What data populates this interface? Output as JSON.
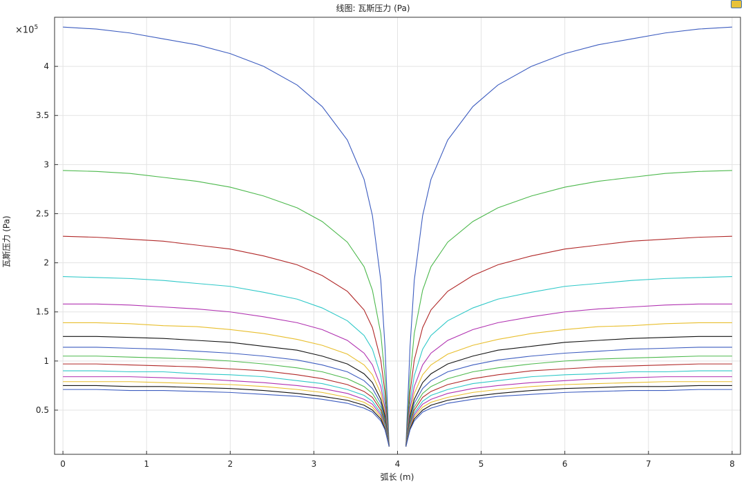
{
  "window": {
    "title": "线图: 瓦斯压力 (Pa)"
  },
  "chart_data": {
    "type": "line",
    "title": "线图: 瓦斯压力 (Pa)",
    "xlabel": "弧长 (m)",
    "ylabel": "瓦斯压力 (Pa)",
    "y_exponent_label": "×10",
    "y_exponent_power": "5",
    "xlim": [
      -0.1,
      8.1
    ],
    "ylim": [
      0.05,
      4.5
    ],
    "y_scale_note": "values in units of 1e5 Pa",
    "grid": true,
    "legend": "none",
    "x_ticks": [
      "0",
      "1",
      "2",
      "3",
      "4",
      "5",
      "6",
      "7",
      "8"
    ],
    "y_ticks": [
      "0.5",
      "1",
      "1.5",
      "2",
      "2.5",
      "3",
      "3.5",
      "4"
    ],
    "y_tick_values": [
      0.5,
      1,
      1.5,
      2,
      2.5,
      3,
      3.5,
      4
    ],
    "gap": [
      3.9,
      4.1
    ],
    "min_value": 0.13,
    "x": [
      0,
      0.4,
      0.8,
      1.2,
      1.6,
      2.0,
      2.4,
      2.8,
      3.1,
      3.4,
      3.6,
      3.7,
      3.8,
      3.85,
      3.9
    ],
    "series": [
      {
        "color": "#3b5bbf",
        "values": [
          4.4,
          4.38,
          4.34,
          4.28,
          4.22,
          4.13,
          4.0,
          3.81,
          3.59,
          3.25,
          2.85,
          2.48,
          1.82,
          1.15,
          0.13
        ]
      },
      {
        "color": "#4bb84b",
        "values": [
          2.94,
          2.93,
          2.91,
          2.87,
          2.83,
          2.77,
          2.68,
          2.56,
          2.42,
          2.21,
          1.96,
          1.72,
          1.28,
          0.83,
          0.13
        ]
      },
      {
        "color": "#b02626",
        "values": [
          2.27,
          2.26,
          2.24,
          2.22,
          2.18,
          2.14,
          2.07,
          1.98,
          1.87,
          1.71,
          1.52,
          1.34,
          1.01,
          0.68,
          0.13
        ]
      },
      {
        "color": "#2ec8c8",
        "values": [
          1.86,
          1.85,
          1.84,
          1.82,
          1.79,
          1.76,
          1.7,
          1.63,
          1.54,
          1.41,
          1.26,
          1.12,
          0.85,
          0.58,
          0.13
        ]
      },
      {
        "color": "#b030b0",
        "values": [
          1.58,
          1.58,
          1.57,
          1.55,
          1.53,
          1.5,
          1.45,
          1.39,
          1.32,
          1.21,
          1.08,
          0.96,
          0.74,
          0.52,
          0.13
        ]
      },
      {
        "color": "#e8be2c",
        "values": [
          1.39,
          1.39,
          1.38,
          1.36,
          1.35,
          1.32,
          1.28,
          1.22,
          1.16,
          1.07,
          0.96,
          0.86,
          0.67,
          0.47,
          0.13
        ]
      },
      {
        "color": "#111111",
        "values": [
          1.25,
          1.25,
          1.24,
          1.23,
          1.21,
          1.19,
          1.15,
          1.11,
          1.05,
          0.97,
          0.87,
          0.78,
          0.61,
          0.44,
          0.13
        ]
      },
      {
        "color": "#3b5bbf",
        "values": [
          1.14,
          1.14,
          1.13,
          1.12,
          1.1,
          1.08,
          1.05,
          1.01,
          0.96,
          0.89,
          0.8,
          0.72,
          0.57,
          0.41,
          0.13
        ]
      },
      {
        "color": "#4bb84b",
        "values": [
          1.05,
          1.05,
          1.04,
          1.03,
          1.02,
          1.0,
          0.97,
          0.93,
          0.89,
          0.82,
          0.74,
          0.67,
          0.53,
          0.39,
          0.13
        ]
      },
      {
        "color": "#b02626",
        "values": [
          0.97,
          0.97,
          0.96,
          0.95,
          0.94,
          0.92,
          0.9,
          0.86,
          0.82,
          0.76,
          0.69,
          0.63,
          0.5,
          0.37,
          0.13
        ]
      },
      {
        "color": "#2ec8c8",
        "values": [
          0.9,
          0.9,
          0.89,
          0.89,
          0.87,
          0.86,
          0.84,
          0.8,
          0.77,
          0.71,
          0.65,
          0.59,
          0.47,
          0.35,
          0.13
        ]
      },
      {
        "color": "#b030b0",
        "values": [
          0.84,
          0.84,
          0.84,
          0.83,
          0.82,
          0.8,
          0.78,
          0.75,
          0.72,
          0.67,
          0.61,
          0.56,
          0.45,
          0.33,
          0.13
        ]
      },
      {
        "color": "#e8be2c",
        "values": [
          0.79,
          0.79,
          0.79,
          0.78,
          0.77,
          0.76,
          0.74,
          0.71,
          0.68,
          0.63,
          0.58,
          0.53,
          0.43,
          0.32,
          0.13
        ]
      },
      {
        "color": "#111111",
        "values": [
          0.75,
          0.75,
          0.74,
          0.74,
          0.73,
          0.72,
          0.7,
          0.67,
          0.64,
          0.6,
          0.55,
          0.5,
          0.41,
          0.31,
          0.13
        ]
      },
      {
        "color": "#3b5bbf",
        "values": [
          0.71,
          0.71,
          0.7,
          0.7,
          0.69,
          0.68,
          0.66,
          0.64,
          0.61,
          0.57,
          0.52,
          0.48,
          0.39,
          0.3,
          0.13
        ]
      }
    ]
  }
}
